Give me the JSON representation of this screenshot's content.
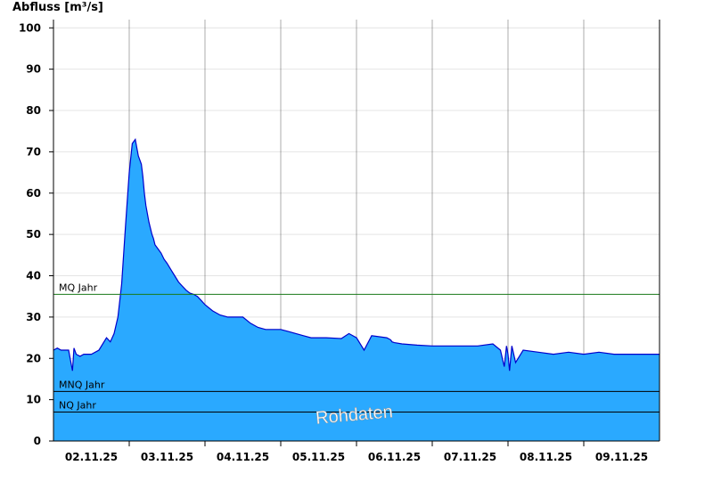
{
  "chart_data": {
    "type": "area",
    "ylabel": "Abfluss [m³/s]",
    "ylim": [
      0,
      102
    ],
    "yticks": [
      0,
      10,
      20,
      30,
      40,
      50,
      60,
      70,
      80,
      90,
      100
    ],
    "xlim_days": [
      1.0,
      9.0
    ],
    "x_tick_labels": [
      "02.11.25",
      "03.11.25",
      "04.11.25",
      "05.11.25",
      "06.11.25",
      "07.11.25",
      "08.11.25",
      "09.11.25"
    ],
    "grid": true,
    "fill_color": "#2aa9ff",
    "line_color": "#0000cc",
    "watermark": "Rohdaten",
    "reference_lines": [
      {
        "label": "MQ Jahr",
        "value": 35.5,
        "color": "#1a7a1a"
      },
      {
        "label": "MNQ Jahr",
        "value": 12.0,
        "color": "#000000"
      },
      {
        "label": "NQ Jahr",
        "value": 7.0,
        "color": "#000000"
      }
    ],
    "series": [
      {
        "x_days": [
          1.0,
          1.05,
          1.1,
          1.2,
          1.25,
          1.27,
          1.3,
          1.35,
          1.4,
          1.5,
          1.6,
          1.7,
          1.75,
          1.8,
          1.85,
          1.9,
          1.95,
          2.0,
          2.04,
          2.08,
          2.12,
          2.16,
          2.18,
          2.2,
          2.22,
          2.24,
          2.26,
          2.28,
          2.3,
          2.32,
          2.34,
          2.38,
          2.42,
          2.46,
          2.5,
          2.55,
          2.6,
          2.65,
          2.7,
          2.75,
          2.8,
          2.85,
          2.9,
          2.95,
          3.0,
          3.1,
          3.2,
          3.3,
          3.4,
          3.5,
          3.6,
          3.7,
          3.8,
          3.9,
          4.0,
          4.1,
          4.2,
          4.3,
          4.4,
          4.5,
          4.6,
          4.8,
          4.9,
          5.0,
          5.1,
          5.2,
          5.4,
          5.45,
          5.47,
          5.5,
          5.6,
          5.8,
          6.0,
          6.2,
          6.4,
          6.6,
          6.8,
          6.9,
          6.95,
          6.98,
          7.0,
          7.02,
          7.05,
          7.1,
          7.2,
          7.4,
          7.6,
          7.8,
          8.0,
          8.2,
          8.4,
          8.6,
          8.8,
          9.0
        ],
        "values": [
          22.0,
          22.5,
          22.0,
          22.0,
          17.0,
          22.5,
          21.0,
          20.5,
          21.0,
          21.0,
          22.0,
          25.0,
          24.0,
          26.0,
          30.0,
          38.0,
          52.0,
          65.0,
          72.0,
          73.0,
          69.0,
          67.0,
          64.0,
          60.0,
          57.0,
          55.0,
          53.0,
          51.5,
          50.0,
          49.0,
          47.5,
          46.5,
          45.5,
          44.0,
          43.0,
          41.5,
          40.0,
          38.5,
          37.5,
          36.5,
          35.8,
          35.5,
          35.0,
          34.0,
          33.0,
          31.5,
          30.5,
          30.0,
          30.0,
          30.0,
          28.5,
          27.5,
          27.0,
          27.0,
          27.0,
          26.5,
          26.0,
          25.5,
          25.0,
          25.0,
          25.0,
          24.8,
          26.0,
          25.0,
          22.0,
          25.5,
          25.0,
          24.5,
          24.0,
          23.8,
          23.5,
          23.2,
          23.0,
          23.0,
          23.0,
          23.0,
          23.5,
          22.0,
          18.0,
          23.0,
          21.0,
          17.0,
          23.0,
          19.0,
          22.0,
          21.5,
          21.0,
          21.5,
          21.0,
          21.5,
          21.0,
          21.0,
          21.0,
          21.0
        ]
      }
    ]
  }
}
